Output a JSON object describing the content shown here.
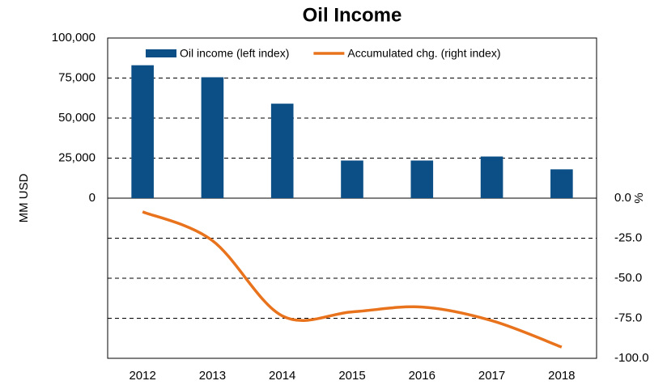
{
  "chart_data": {
    "type": "bar_line",
    "title": "Oil Income",
    "y_label": "MM USD",
    "y2_label": "%",
    "categories": [
      "2012",
      "2013",
      "2014",
      "2015",
      "2016",
      "2017",
      "2018"
    ],
    "series": [
      {
        "name": "Oil income (left index)",
        "type": "bar",
        "color": "#0b4f86",
        "axis": "y",
        "values": [
          83000,
          75500,
          59000,
          23500,
          23500,
          26000,
          18000
        ]
      },
      {
        "name": "Accumulated chg. (right index)",
        "type": "line",
        "color": "#e8731c",
        "axis": "y2",
        "values": [
          -8.5,
          -26.5,
          -73.5,
          -71,
          -68,
          -76.5,
          -93
        ]
      }
    ],
    "ylim": [
      -100000,
      100000
    ],
    "yticks": [
      0,
      {
        "value": 25000,
        "label": "25,000"
      },
      {
        "value": 50000,
        "label": "50,000"
      },
      {
        "value": 75000,
        "label": "75,000"
      },
      {
        "value": 100000,
        "label": "100,000"
      }
    ],
    "y2lim": [
      -100,
      100
    ],
    "y2ticks": [
      {
        "value": 0,
        "label": "0.0"
      },
      {
        "value": -25,
        "label": "-25.0"
      },
      {
        "value": -50,
        "label": "-50.0"
      },
      {
        "value": -75,
        "label": "-75.0"
      },
      {
        "value": -100,
        "label": "-100.0"
      }
    ],
    "grid": true,
    "legend": "top"
  }
}
